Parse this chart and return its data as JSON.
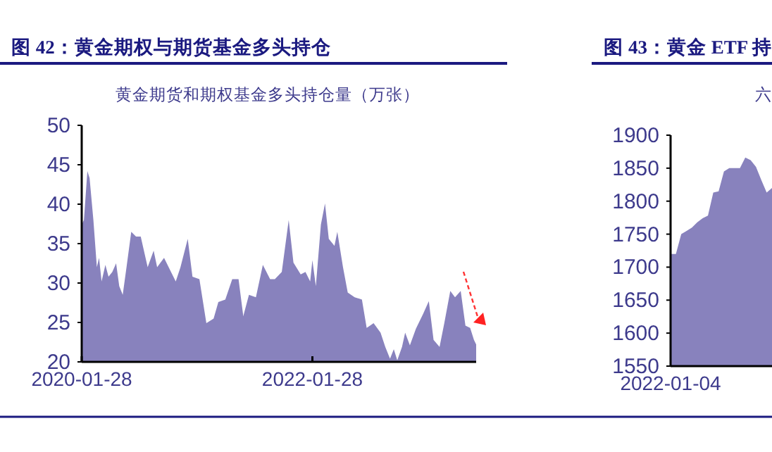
{
  "chart_data": [
    {
      "type": "area",
      "title": "图 42：黄金期权与期货基金多头持仓",
      "subtitle": "黄金期货和期权基金多头持仓量（万张）",
      "x": [
        "2020-01-28",
        "2020-02-04",
        "2020-02-15",
        "2020-02-22",
        "2020-03-05",
        "2020-03-16",
        "2020-03-23",
        "2020-03-31",
        "2020-04-12",
        "2020-04-22",
        "2020-05-04",
        "2020-05-16",
        "2020-05-26",
        "2020-06-06",
        "2020-06-18",
        "2020-07-03",
        "2020-07-18",
        "2020-08-02",
        "2020-08-24",
        "2020-09-12",
        "2020-09-23",
        "2020-10-15",
        "2020-11-06",
        "2020-11-21",
        "2020-12-06",
        "2020-12-29",
        "2021-01-13",
        "2021-02-04",
        "2021-02-26",
        "2021-03-21",
        "2021-04-05",
        "2021-04-27",
        "2021-05-19",
        "2021-06-08",
        "2021-06-23",
        "2021-07-11",
        "2021-08-02",
        "2021-08-24",
        "2021-09-16",
        "2021-10-01",
        "2021-10-23",
        "2021-11-14",
        "2021-11-29",
        "2021-12-22",
        "2022-01-06",
        "2022-01-21",
        "2022-01-28",
        "2022-02-08",
        "2022-02-24",
        "2022-03-09",
        "2022-03-21",
        "2022-04-08",
        "2022-04-17",
        "2022-05-05",
        "2022-05-20",
        "2022-06-11",
        "2022-07-04",
        "2022-07-19",
        "2022-08-10",
        "2022-09-01",
        "2022-09-16",
        "2022-10-01",
        "2022-10-13",
        "2022-10-24",
        "2022-11-08",
        "2022-11-18",
        "2022-12-03",
        "2022-12-22",
        "2023-01-14",
        "2023-02-01",
        "2023-02-16",
        "2023-03-07",
        "2023-03-22",
        "2023-04-10",
        "2023-04-25",
        "2023-05-13",
        "2023-05-28",
        "2023-06-12",
        "2023-06-24",
        "2023-07-01"
      ],
      "series": [
        {
          "color": "#8882bd",
          "values": [
            37.4,
            38,
            44.2,
            43.3,
            38,
            32,
            33.2,
            30.2,
            32.3,
            30.8,
            31.4,
            32.5,
            29.6,
            28.5,
            32,
            36.5,
            35.9,
            35.9,
            32,
            34.1,
            32,
            33.2,
            31.4,
            30.2,
            32,
            35.6,
            30.8,
            30.5,
            24.9,
            25.5,
            27.6,
            27.9,
            30.5,
            30.5,
            25.8,
            28.5,
            28.2,
            32.3,
            30.5,
            30.5,
            31.4,
            38,
            32.6,
            31.1,
            31.4,
            30.2,
            32.9,
            29.6,
            37.4,
            40.1,
            35.6,
            34.7,
            36.5,
            32,
            28.8,
            28.2,
            27.9,
            24.3,
            24.9,
            23.7,
            21.9,
            20.4,
            21.6,
            20.2,
            21.9,
            23.7,
            22.1,
            24.2,
            26.1,
            27.7,
            22.8,
            21.9,
            24.9,
            29,
            28.2,
            29,
            24.6,
            24.3,
            22.8,
            22.2
          ]
        }
      ],
      "xlim": [
        "2020-01-28",
        "2023-07-01"
      ],
      "xticks": [
        "2020-01-28",
        "2022-01-28"
      ],
      "ylim": [
        20,
        50
      ],
      "yticks": [
        20,
        25,
        30,
        35,
        40,
        45,
        50
      ]
    },
    {
      "type": "area",
      "title": "图 43：黄金 ETF 持",
      "subtitle": "六",
      "categories": [
        null,
        null,
        null,
        null,
        null,
        null,
        null,
        null,
        null,
        null,
        null,
        null,
        null,
        null,
        null,
        null,
        null,
        null,
        null,
        null
      ],
      "series": [
        {
          "color": "#8882bd",
          "values": [
            1720,
            1720,
            1750,
            1755,
            1760,
            1768,
            1774,
            1778,
            1813,
            1815,
            1845,
            1850,
            1850,
            1850,
            1866,
            1862,
            1852,
            1832,
            1813,
            1820
          ]
        }
      ],
      "annotations": [
        "2022-01-04"
      ],
      "ylim": [
        1550,
        1900
      ],
      "yticks": [
        1550,
        1600,
        1650,
        1700,
        1750,
        1800,
        1850,
        1900
      ]
    }
  ]
}
